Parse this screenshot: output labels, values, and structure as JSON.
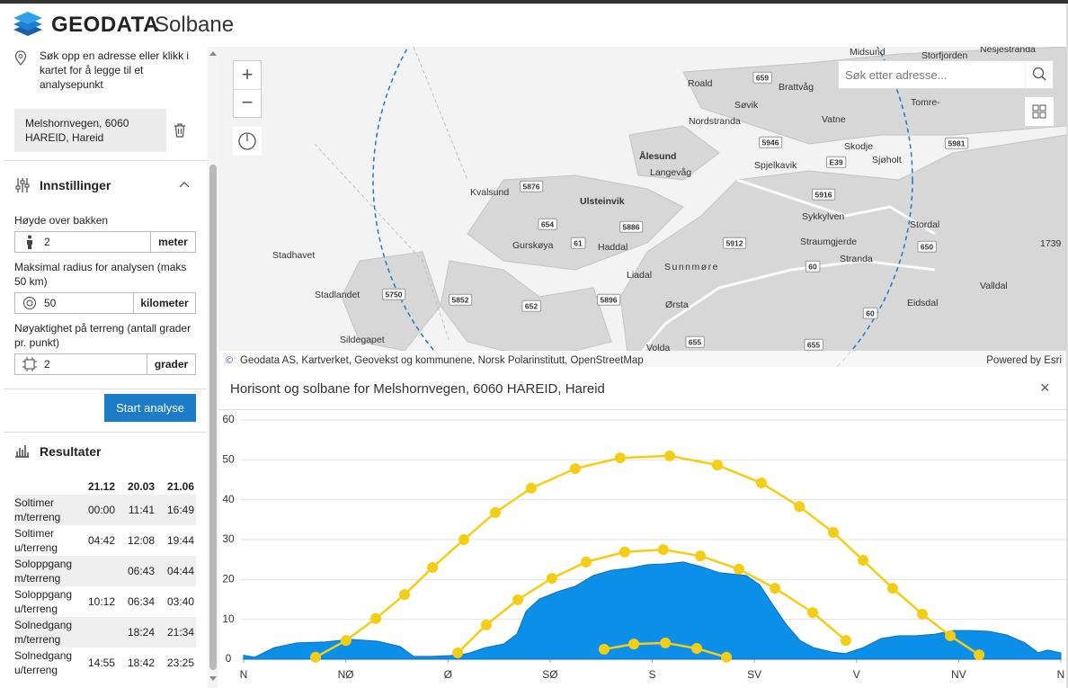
{
  "header": {
    "brand": "GEODATA",
    "app": "Solbane"
  },
  "sidebar": {
    "hint": "Søk opp en adresse eller klikk i kartet for å legge til et analysepunkt",
    "address": "Melshornvegen, 6060 HAREID, Hareid",
    "settings": {
      "title": "Innstillinger",
      "height_label": "Høyde over bakken",
      "height_value": 2,
      "height_unit": "meter",
      "radius_label": "Maksimal radius for analysen (maks 50 km)",
      "radius_value": 50,
      "radius_unit": "kilometer",
      "accuracy_label": "Nøyaktighet på terreng (antall grader pr. punkt)",
      "accuracy_value": 2,
      "accuracy_unit": "grader"
    },
    "button": "Start analyse",
    "results": {
      "title": "Resultater",
      "columns": [
        "21.12",
        "20.03",
        "21.06"
      ],
      "rows": [
        {
          "label": "Soltimer m/terreng",
          "values": [
            "00:00",
            "11:41",
            "16:49"
          ]
        },
        {
          "label": "Soltimer u/terreng",
          "values": [
            "04:42",
            "12:08",
            "19:44"
          ]
        },
        {
          "label": "Soloppgang m/terreng",
          "values": [
            null,
            "06:43",
            "04:44"
          ]
        },
        {
          "label": "Soloppgang u/terreng",
          "values": [
            "10:12",
            "06:34",
            "03:40"
          ]
        },
        {
          "label": "Solnedgang m/terreng",
          "values": [
            null,
            "18:24",
            "21:34"
          ]
        },
        {
          "label": "Solnedgang u/terreng",
          "values": [
            "14:55",
            "18:42",
            "23:25"
          ]
        }
      ]
    }
  },
  "map": {
    "search_placeholder": "Søk etter adresse...",
    "attribution": "Geodata AS, Kartverket, Geovekst og kommunene, Norsk Polarinstitutt, OpenStreetMap",
    "powered_by": "Powered by Esri",
    "places": [
      "Midsund",
      "Storfjorden",
      "Nesjestranda",
      "Roald",
      "Brattvåg",
      "Søvik",
      "Tomre-",
      "Nordstranda",
      "Vatne",
      "Skodje",
      "Ålesund",
      "Spjelkavik",
      "Sjøholt",
      "Langevåg",
      "Kvalsund",
      "Ulsteinvik",
      "Sykkylven",
      "Stordal",
      "Stadhavet",
      "Gurskøya",
      "Haddal",
      "Straumgjerde",
      "Sunnmøre",
      "Stranda",
      "Stadlandet",
      "Liadal",
      "Ørsta",
      "Valldal",
      "Eidsdal",
      "Sildegapet",
      "Volda",
      1739
    ],
    "roads": [
      659,
      5946,
      5981,
      "E39",
      5876,
      5916,
      654,
      5886,
      61,
      5912,
      650,
      60,
      5750,
      5852,
      5896,
      652,
      60,
      655,
      655
    ]
  },
  "chart_data": {
    "type": "line",
    "title": "Horisont og solbane for Melshornvegen, 6060 HAREID, Hareid",
    "xlim": [
      0,
      360
    ],
    "xticks": [
      {
        "value": 0,
        "label": "N"
      },
      {
        "value": 45,
        "label": "NØ"
      },
      {
        "value": 90,
        "label": "Ø"
      },
      {
        "value": 135,
        "label": "SØ"
      },
      {
        "value": 180,
        "label": "S"
      },
      {
        "value": 225,
        "label": "SV"
      },
      {
        "value": 270,
        "label": "V"
      },
      {
        "value": 315,
        "label": "NV"
      },
      {
        "value": 360,
        "label": "N"
      }
    ],
    "ylim": [
      0,
      60
    ],
    "yticks": [
      0,
      10,
      20,
      30,
      40,
      50,
      60
    ],
    "grid": true,
    "series": [
      {
        "type": "area",
        "color": "#0b8fe8",
        "x": [
          0,
          4.8,
          13.5,
          23.4,
          35.2,
          47.1,
          59.0,
          68.9,
          74.9,
          82.8,
          90.7,
          98.6,
          106.5,
          114.5,
          120.4,
          124.4,
          130.3,
          138.2,
          146.1,
          154.1,
          162.0,
          169.9,
          177.8,
          185.7,
          193.7,
          201.6,
          209.5,
          221.4,
          227.3,
          233.3,
          239.2,
          245.1,
          251.1,
          259.0,
          265.0,
          272.9,
          280.8,
          288.7,
          296.6,
          304.6,
          312.5,
          320.4,
          328.3,
          336.2,
          344.2,
          350.1,
          354.1,
          360
        ],
        "values": [
          1.0,
          0.5,
          2.9,
          4.1,
          4.3,
          5.0,
          4.5,
          3.2,
          0.7,
          0.7,
          0.9,
          1.4,
          2.9,
          3.8,
          6.3,
          12.0,
          15.1,
          16.9,
          18.3,
          21.0,
          22.3,
          22.8,
          23.7,
          23.9,
          24.4,
          23.2,
          21.7,
          21.0,
          18.7,
          13.5,
          8.6,
          4.7,
          2.9,
          1.8,
          1.4,
          2.9,
          5.2,
          5.9,
          5.9,
          6.3,
          7.2,
          7.2,
          7.0,
          6.1,
          4.1,
          1.6,
          2.3,
          1.6
        ]
      },
      {
        "type": "line",
        "color": "#f6cd15",
        "x": [
          31.7,
          45.1,
          58.2,
          70.9,
          83.2,
          97.0,
          110.9,
          126.7,
          146.1,
          165.9,
          187.7,
          208.7,
          228.1,
          244.8,
          259.8,
          272.9,
          285.9,
          299.0,
          311.3,
          324.0
        ],
        "values": [
          0.5,
          4.7,
          10.2,
          16.2,
          23.0,
          30.0,
          36.8,
          42.9,
          47.8,
          50.5,
          51.0,
          48.7,
          44.2,
          38.3,
          31.8,
          24.8,
          17.8,
          11.3,
          5.9,
          1.1
        ]
      },
      {
        "type": "line",
        "color": "#f6cd15",
        "x": [
          94.3,
          106.9,
          120.8,
          135.8,
          150.9,
          167.9,
          184.9,
          201.2,
          218.2,
          234.1,
          250.7,
          265.3
        ],
        "values": [
          1.6,
          8.6,
          14.9,
          20.3,
          24.4,
          26.9,
          27.5,
          25.9,
          22.6,
          17.8,
          11.7,
          4.7
        ]
      },
      {
        "type": "line",
        "color": "#f6cd15",
        "x": [
          158.8,
          171.9,
          185.8,
          199.6,
          212.7
        ],
        "values": [
          2.5,
          3.8,
          4.1,
          2.7,
          0.5
        ]
      }
    ]
  }
}
